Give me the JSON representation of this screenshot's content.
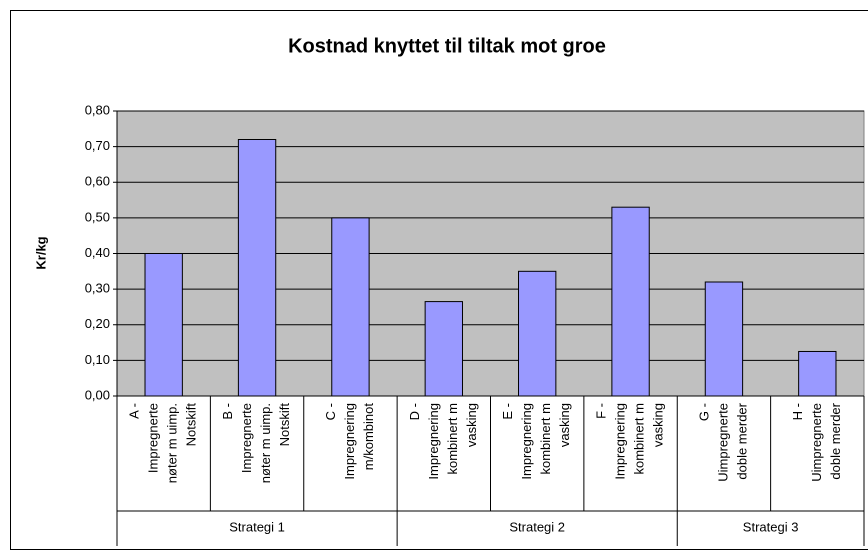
{
  "chart_data": {
    "type": "bar",
    "title": "Kostnad knyttet til tiltak mot groe",
    "ylabel": "Kr/kg",
    "categories": [
      [
        "A -",
        "Impregnerte",
        "nøter m uimp.",
        "Notskift"
      ],
      [
        "B -",
        "Impregnerte",
        "nøter m uimp.",
        "Notskift"
      ],
      [
        "C -",
        "Impregnering",
        "m/kombinot"
      ],
      [
        "D -",
        "Impregnering",
        "kombinert m",
        "vasking"
      ],
      [
        "E -",
        "Impregnering",
        "kombinert m",
        "vasking"
      ],
      [
        "F -",
        "Impregnering",
        "kombinert m",
        "vasking"
      ],
      [
        "G -",
        "Uimpregnerte",
        "doble merder"
      ],
      [
        "H -",
        "Uimpregnerte",
        "doble merder"
      ]
    ],
    "groups": [
      "Strategi 1",
      "Strategi 2",
      "Strategi 3"
    ],
    "values": [
      0.4,
      0.72,
      0.5,
      0.265,
      0.35,
      0.53,
      0.32,
      0.125
    ],
    "color": "#9999ff",
    "plot_background": "#c0c0c0",
    "ylim": [
      0,
      0.8
    ],
    "yticks": [
      {
        "value": 0,
        "label": "0,00"
      },
      {
        "value": 0.1,
        "label": "0,10"
      },
      {
        "value": 0.2,
        "label": "0,20"
      },
      {
        "value": 0.3,
        "label": "0,30"
      },
      {
        "value": 0.4,
        "label": "0,40"
      },
      {
        "value": 0.5,
        "label": "0,50"
      },
      {
        "value": 0.6,
        "label": "0,60"
      },
      {
        "value": 0.7,
        "label": "0,70"
      },
      {
        "value": 0.8,
        "label": "0,80"
      }
    ],
    "grid": true
  }
}
